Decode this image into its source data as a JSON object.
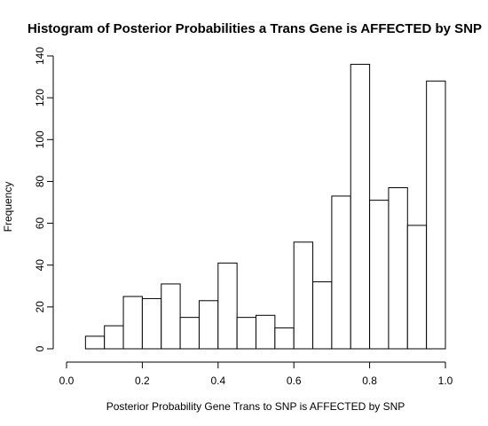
{
  "chart_data": {
    "type": "bar",
    "title": "Histogram of Posterior Probabilities a Trans Gene is AFFECTED by SNP",
    "xlabel": "Posterior Probability Gene Trans to SNP is AFFECTED by SNP",
    "ylabel": "Frequency",
    "xlim": [
      0.0,
      1.0
    ],
    "ylim": [
      0,
      140
    ],
    "x_ticks": [
      "0.0",
      "0.2",
      "0.4",
      "0.6",
      "0.8",
      "1.0"
    ],
    "y_ticks": [
      "0",
      "20",
      "40",
      "60",
      "80",
      "100",
      "120",
      "140"
    ],
    "grid": false,
    "bins": [
      {
        "from": 0.05,
        "to": 0.1,
        "count": 6
      },
      {
        "from": 0.1,
        "to": 0.15,
        "count": 11
      },
      {
        "from": 0.15,
        "to": 0.2,
        "count": 25
      },
      {
        "from": 0.2,
        "to": 0.25,
        "count": 24
      },
      {
        "from": 0.25,
        "to": 0.3,
        "count": 31
      },
      {
        "from": 0.3,
        "to": 0.35,
        "count": 15
      },
      {
        "from": 0.35,
        "to": 0.4,
        "count": 23
      },
      {
        "from": 0.4,
        "to": 0.45,
        "count": 41
      },
      {
        "from": 0.45,
        "to": 0.5,
        "count": 15
      },
      {
        "from": 0.5,
        "to": 0.55,
        "count": 16
      },
      {
        "from": 0.55,
        "to": 0.6,
        "count": 10
      },
      {
        "from": 0.6,
        "to": 0.65,
        "count": 51
      },
      {
        "from": 0.65,
        "to": 0.7,
        "count": 32
      },
      {
        "from": 0.7,
        "to": 0.75,
        "count": 73
      },
      {
        "from": 0.75,
        "to": 0.8,
        "count": 136
      },
      {
        "from": 0.8,
        "to": 0.85,
        "count": 71
      },
      {
        "from": 0.85,
        "to": 0.9,
        "count": 77
      },
      {
        "from": 0.9,
        "to": 0.95,
        "count": 59
      },
      {
        "from": 0.95,
        "to": 1.0,
        "count": 128
      }
    ]
  }
}
